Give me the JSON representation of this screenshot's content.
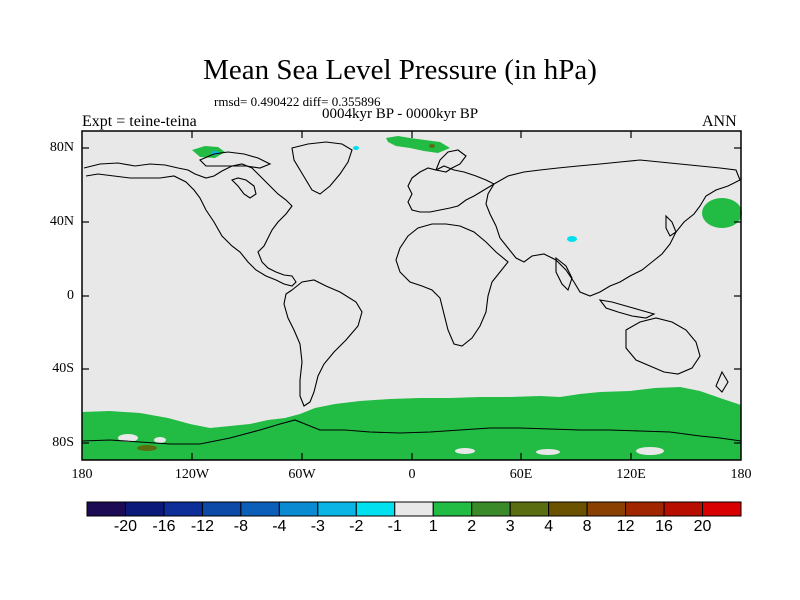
{
  "title": "Mean Sea Level Pressure (in hPa)",
  "stats": "rmsd= 0.490422 diff= 0.355896",
  "period": "0004kyr BP - 0000kyr BP",
  "experiment": "Expt = teine-teina",
  "season": "ANN",
  "lat_labels": [
    "80N",
    "40N",
    "0",
    "40S",
    "80S"
  ],
  "lon_labels": [
    "180",
    "120W",
    "60W",
    "0",
    "60E",
    "120E",
    "180"
  ],
  "colorbar": {
    "labels": [
      "-20",
      "-16",
      "-12",
      "-8",
      "-4",
      "-3",
      "-2",
      "-1",
      "1",
      "2",
      "3",
      "4",
      "8",
      "12",
      "16",
      "20"
    ],
    "colors": [
      "#1d0a55",
      "#0b1a7a",
      "#0d2d98",
      "#0d4aa8",
      "#0b5fb8",
      "#0a8ad0",
      "#0ab4e4",
      "#00e0ee",
      "#e8e8e8",
      "#22bb44",
      "#3a8a2a",
      "#5a6d10",
      "#6b5200",
      "#8a4000",
      "#a02600",
      "#b80e00",
      "#d80000"
    ]
  },
  "colors": {
    "background": "#e8e8e8",
    "positive_anomaly": "#22bb44",
    "brown_anomaly": "#5a6d10",
    "negative_anomaly": "#00e0ee"
  }
}
